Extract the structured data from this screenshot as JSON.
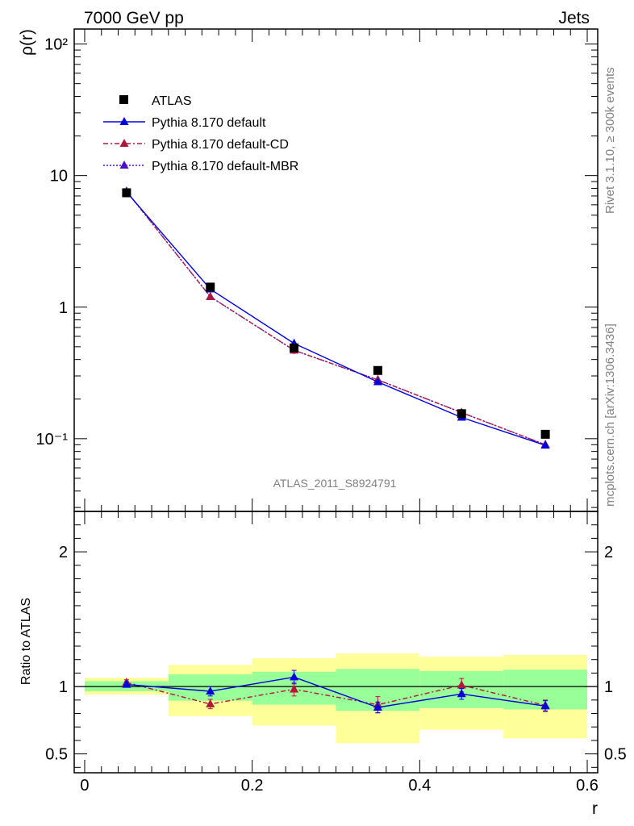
{
  "header": {
    "left": "7000 GeV pp",
    "right": "Jets"
  },
  "side_text": {
    "rivet": "Rivet 3.1.10, ≥ 300k events",
    "mcplots": "mcplots.cern.ch [arXiv:1306.3436]"
  },
  "watermark": "ATLAS_2011_S8924791",
  "chart_data": [
    {
      "type": "line",
      "title": "",
      "xlabel": "r",
      "ylabel": "ρ(r)",
      "log_y": true,
      "xlim": [
        -0.0125,
        0.6125
      ],
      "ylim": [
        0.028,
        130
      ],
      "y_tick_labels": [
        "10⁻¹",
        "1",
        "10",
        "10²"
      ],
      "x": [
        0.05,
        0.15,
        0.25,
        0.35,
        0.45,
        0.55
      ],
      "legend_position": "top-left",
      "legend": [
        "ATLAS",
        "Pythia 8.170 default",
        "Pythia 8.170 default-CD",
        "Pythia 8.170 default-MBR"
      ],
      "series": [
        {
          "name": "ATLAS",
          "color": "#000000",
          "marker": "square",
          "values": [
            7.4,
            1.42,
            0.49,
            0.33,
            0.155,
            0.108
          ]
        },
        {
          "name": "Pythia 8.170 default",
          "color": "#0000dd",
          "marker": "triangle",
          "line": "solid",
          "values": [
            7.5,
            1.37,
            0.53,
            0.27,
            0.145,
            0.089
          ],
          "errors": [
            0.2,
            0.06,
            0.04,
            0.013,
            0.008,
            0.004
          ]
        },
        {
          "name": "Pythia 8.170 default-CD",
          "color": "#b0173c",
          "marker": "triangle",
          "line": "dashdot",
          "values": [
            7.6,
            1.2,
            0.47,
            0.28,
            0.158,
            0.09
          ],
          "errors": [
            0.2,
            0.05,
            0.03,
            0.012,
            0.008,
            0.004
          ]
        },
        {
          "name": "Pythia 8.170 default-MBR",
          "color": "#4b0fc8",
          "marker": "triangle",
          "line": "dotted",
          "values": [
            7.6,
            1.2,
            0.47,
            0.28,
            0.158,
            0.09
          ],
          "errors": [
            0.2,
            0.05,
            0.03,
            0.012,
            0.008,
            0.004
          ]
        }
      ]
    },
    {
      "type": "line",
      "title": "",
      "xlabel": "r",
      "ylabel": "Ratio to ATLAS",
      "xlim": [
        -0.0125,
        0.6125
      ],
      "ylim": [
        0.36,
        2.3
      ],
      "x_ticks": [
        0,
        0.2,
        0.4,
        0.6
      ],
      "x_tick_labels": [
        "0",
        "0.2",
        "0.4",
        "0.6"
      ],
      "y_ticks": [
        0.5,
        1,
        2
      ],
      "y_tick_labels": [
        "0.5",
        "1",
        "2"
      ],
      "x": [
        0.05,
        0.15,
        0.25,
        0.35,
        0.45,
        0.55
      ],
      "bands": {
        "bin_edges": [
          0,
          0.1,
          0.2,
          0.3,
          0.4,
          0.5,
          0.6
        ],
        "inner_low": [
          0.965,
          0.895,
          0.865,
          0.82,
          0.84,
          0.83
        ],
        "inner_high": [
          1.04,
          1.09,
          1.11,
          1.13,
          1.115,
          1.125
        ],
        "outer_low": [
          0.94,
          0.78,
          0.71,
          0.58,
          0.68,
          0.615
        ],
        "outer_high": [
          1.065,
          1.16,
          1.21,
          1.245,
          1.22,
          1.235
        ],
        "inner_color": "#99ff99",
        "outer_color": "#ffff99"
      },
      "series": [
        {
          "name": "Pythia 8.170 default",
          "color": "#0000dd",
          "line": "solid",
          "values": [
            1.015,
            0.965,
            1.07,
            0.845,
            0.945,
            0.855
          ],
          "errors": [
            0.02,
            0.035,
            0.05,
            0.04,
            0.04,
            0.04
          ]
        },
        {
          "name": "Pythia 8.170 default-CD",
          "color": "#b0173c",
          "line": "dashdot",
          "values": [
            1.03,
            0.87,
            0.98,
            0.865,
            1.01,
            0.86
          ],
          "errors": [
            0.02,
            0.035,
            0.05,
            0.06,
            0.05,
            0.04
          ]
        }
      ]
    }
  ]
}
